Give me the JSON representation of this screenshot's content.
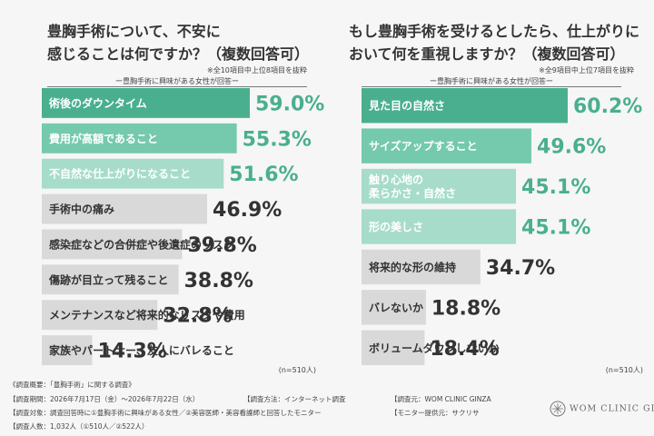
{
  "chart_data": [
    {
      "type": "bar",
      "orientation": "horizontal",
      "title_lines": [
        "豊胸手術について、不安に",
        "感じることは何ですか？（複数回答可）"
      ],
      "note": "※全10項目中上位8項目を抜粋",
      "caption": "ー豊胸手術に興味がある女性が回答ー",
      "n_label": "(n=510人)",
      "unit": "%",
      "categories": [
        "術後のダウンタイム",
        "費用が高額であること",
        "不自然な仕上がりになること",
        "手術中の痛み",
        "感染症などの合併症や後遺症のリスク",
        "傷跡が目立って残ること",
        "メンテナンスなど将来的なリスクや費用",
        "家族やパートナー、友人にバレること"
      ],
      "values": [
        59.0,
        55.3,
        51.6,
        46.9,
        39.8,
        38.8,
        32.8,
        14.3
      ],
      "value_labels": [
        "59.0%",
        "55.3%",
        "51.6%",
        "46.9%",
        "39.8%",
        "38.8%",
        "32.8%",
        "14.3%"
      ],
      "highlight_count": 3,
      "colors": {
        "highlight": [
          "#4aaf8f",
          "#75c9ad",
          "#a7dccb"
        ],
        "default": "#d9d9d9",
        "value_highlight": "#4aaf8f",
        "value_default": "#333333",
        "label_highlight": "#ffffff",
        "label_default": "#333333"
      }
    },
    {
      "type": "bar",
      "orientation": "horizontal",
      "title_lines": [
        "もし豊胸手術を受けるとしたら、仕上がりに",
        "おいて何を重視しますか？（複数回答可）"
      ],
      "note": "※全9項目中上位7項目を抜粋",
      "caption": "ー豊胸手術に興味がある女性が回答ー",
      "n_label": "(n=510人)",
      "unit": "%",
      "categories": [
        "見た目の自然さ",
        "サイズアップすること",
        "触り心地の\n柔らかさ・自然さ",
        "形の美しさ",
        "将来的な形の維持",
        "バレないか",
        "ボリュームダウンしないか"
      ],
      "values": [
        60.2,
        49.6,
        45.1,
        45.1,
        34.7,
        18.8,
        18.4
      ],
      "value_labels": [
        "60.2%",
        "49.6%",
        "45.1%",
        "45.1%",
        "34.7%",
        "18.8%",
        "18.4%"
      ],
      "highlight_count": 4,
      "colors": {
        "highlight": [
          "#4aaf8f",
          "#75c9ad",
          "#a7dccb",
          "#a7dccb"
        ],
        "default": "#d9d9d9",
        "value_highlight": "#4aaf8f",
        "value_default": "#333333",
        "label_highlight": "#ffffff",
        "label_default": "#333333"
      }
    }
  ],
  "footer": {
    "line1": "《調査概要：「豊胸手術」に関する調査》",
    "period": "【調査期間：2026年7月17日（金）〜2026年7月22日（水）",
    "method": "【調査方法：インターネット調査",
    "source": "【調査元：WOM CLINIC GINZA",
    "target": "【調査対象：調査回答時に①豊胸手術に興味がある女性／②美容医師・美容看護師と回答したモニター",
    "provider": "【モニター提供元：サクリサ",
    "count": "【調査人数：1,032人（①510人／②522人）",
    "logo": "WOM CLINIC GINZA"
  }
}
